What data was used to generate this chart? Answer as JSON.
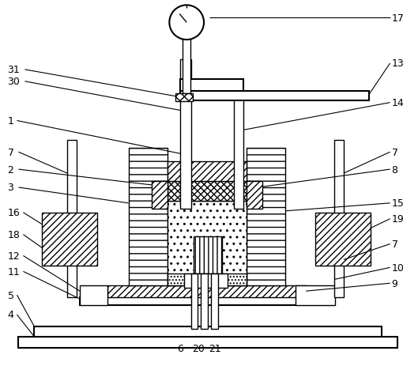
{
  "background_color": "#ffffff",
  "line_color": "#000000",
  "figsize": [
    5.29,
    4.64
  ],
  "dpi": 100
}
